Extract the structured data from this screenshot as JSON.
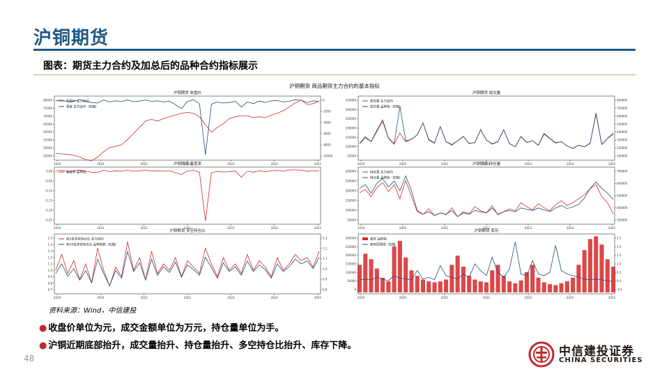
{
  "page": {
    "title": "沪铜期货",
    "subtitle": "图表：期货主力合约及加总后的品种合约指标展示",
    "source": "资料来源：Wind，中信建投",
    "bullets": [
      "收盘价单位为元，成交金额单位为万元，持仓量单位为手。",
      "沪铜近期底部抬升，成交量抬升、持仓量抬升、多空持仓比抬升、库存下降。"
    ],
    "page_number": "48",
    "logo": {
      "cn": "中信建投证券",
      "en": "CHINA SECURITIES",
      "icon": "china-securities-logo-icon"
    },
    "colors": {
      "accent": "#1f5a84",
      "red": "#d62728",
      "blue": "#1f4e79"
    }
  },
  "chart_data": {
    "suptitle": "沪铜期货 商品期货主力合约的基本指标",
    "x_ticks": [
      "2019",
      "2020",
      "2021",
      "2022",
      "2023",
      "2024",
      "2025"
    ],
    "charts": [
      {
        "type": "line",
        "title": "沪铜期货 收盘价",
        "y_ticks": [
          "80000",
          "75000",
          "70000",
          "65000",
          "60000",
          "55000",
          "50000",
          "45000"
        ],
        "y2_ticks": [
          "0",
          "-2000",
          "-4000",
          "-6000",
          "-8000",
          "-10000"
        ],
        "ylim": [
          45000,
          80000
        ],
        "y2lim": [
          -10500,
          500
        ],
        "series": [
          {
            "name": "收盘价 主力合约",
            "color": "red",
            "axis": "left",
            "values": [
              48000,
              47800,
              47500,
              47000,
              46000,
              44500,
              43800,
              46000,
              49000,
              51500,
              52000,
              53000,
              56000,
              59500,
              63000,
              66500,
              67500,
              66500,
              68000,
              69000,
              70000,
              71000,
              71500,
              71000,
              69000,
              64500,
              60000,
              63000,
              65000,
              68000,
              69000,
              69500,
              69500,
              68500,
              69000,
              68500,
              70000,
              71000,
              72500,
              74500,
              77000,
              78500,
              76000,
              76500,
              78000
            ]
          },
          {
            "name": "基差 主力合约（右轴）",
            "color": "blue",
            "axis": "right",
            "values": [
              -100,
              50,
              -300,
              -150,
              100,
              -200,
              -400,
              -500,
              50,
              -300,
              -100,
              -200,
              50,
              -250,
              -150,
              50,
              -200,
              -100,
              -300,
              -150,
              -800,
              -1500,
              -200,
              100,
              -600,
              -9800,
              -700,
              -300,
              -500,
              -400,
              -200,
              -1200,
              -300,
              -600,
              -150,
              -400,
              -100,
              -50,
              -300,
              -200,
              100,
              0,
              -400,
              -100,
              -200
            ]
          }
        ]
      },
      {
        "type": "line",
        "title": "沪铜期货 成交量",
        "y_ticks": [
          "350000",
          "300000",
          "250000",
          "200000",
          "150000",
          "100000",
          "50000"
        ],
        "y2_ticks": [
          "800000",
          "700000",
          "600000",
          "500000",
          "400000",
          "300000",
          "200000",
          "100000"
        ],
        "ylim": [
          0,
          360000
        ],
        "y2lim": [
          0,
          820000
        ],
        "series": [
          {
            "name": "成交量 主力合约",
            "color": "red",
            "axis": "left",
            "values": [
              90000,
              130000,
              100000,
              160000,
              220000,
              120000,
              85000,
              150000,
              100000,
              115000,
              140000,
              210000,
              110000,
              90000,
              190000,
              100000,
              80000,
              105000,
              130000,
              90000,
              95000,
              170000,
              110000,
              85000,
              100000,
              170000,
              90000,
              70000,
              130000,
              95000,
              105000,
              80000,
              150000,
              120000,
              95000,
              100000,
              75000,
              60000,
              80000,
              70000,
              90000,
              270000,
              85000,
              120000,
              150000
            ]
          },
          {
            "name": "成交量 品种指（右轴）",
            "color": "blue",
            "axis": "right",
            "values": [
              200000,
              280000,
              230000,
              380000,
              520000,
              280000,
              200000,
              700000,
              240000,
              260000,
              320000,
              480000,
              260000,
              210000,
              430000,
              230000,
              190000,
              240000,
              300000,
              200000,
              220000,
              390000,
              250000,
              200000,
              230000,
              390000,
              200000,
              160000,
              300000,
              220000,
              240000,
              180000,
              330000,
              270000,
              210000,
              230000,
              170000,
              140000,
              180000,
              160000,
              210000,
              600000,
              190000,
              270000,
              330000
            ]
          }
        ]
      },
      {
        "type": "line",
        "title": "沪铜期货 基差率",
        "y_ticks": [
          "0.00",
          "-0.05",
          "-0.10",
          "-0.15",
          "-0.20",
          "-0.25"
        ],
        "ylim": [
          -0.27,
          0.01
        ],
        "series": [
          {
            "name": "基差率 品种指",
            "color": "red",
            "axis": "left",
            "values": [
              -0.003,
              0.001,
              -0.006,
              -0.003,
              0.002,
              -0.004,
              -0.009,
              -0.011,
              0.001,
              -0.006,
              -0.002,
              -0.004,
              0.001,
              -0.004,
              -0.002,
              0.001,
              -0.003,
              -0.002,
              -0.004,
              -0.002,
              -0.012,
              -0.021,
              -0.003,
              0.001,
              -0.009,
              -0.26,
              -0.011,
              -0.005,
              -0.008,
              -0.006,
              -0.003,
              -0.035,
              -0.004,
              -0.009,
              -0.002,
              -0.006,
              -0.001,
              0.0,
              -0.004,
              0.002,
              0.003,
              0.001,
              -0.005,
              -0.001,
              -0.003
            ]
          }
        ]
      },
      {
        "type": "line",
        "title": "沪铜期货 持仓量",
        "y_ticks": [
          "300000",
          "250000",
          "200000",
          "150000",
          "100000",
          "50000"
        ],
        "y2_ticks": [
          "700000",
          "600000",
          "500000",
          "400000",
          "300000"
        ],
        "ylim": [
          40000,
          310000
        ],
        "y2lim": [
          280000,
          720000
        ],
        "series": [
          {
            "name": "持仓量 主力合约",
            "color": "red",
            "axis": "left",
            "values": [
              190000,
              205000,
              170000,
              215000,
              240000,
              195000,
              230000,
              160000,
              250000,
              170000,
              95000,
              82000,
              110000,
              75000,
              90000,
              80000,
              115000,
              70000,
              95000,
              85000,
              120000,
              100000,
              90000,
              125000,
              80000,
              95000,
              110000,
              100000,
              140000,
              120000,
              105000,
              135000,
              115000,
              100000,
              130000,
              150000,
              125000,
              140000,
              160000,
              180000,
              210000,
              230000,
              170000,
              140000,
              85000
            ]
          },
          {
            "name": "持仓量 品种指（右轴）",
            "color": "blue",
            "axis": "right",
            "values": [
              560000,
              590000,
              520000,
              600000,
              640000,
              570000,
              620000,
              540000,
              660000,
              540000,
              380000,
              350000,
              370000,
              340000,
              360000,
              350000,
              380000,
              330000,
              360000,
              350000,
              380000,
              370000,
              360000,
              400000,
              350000,
              370000,
              380000,
              370000,
              400000,
              390000,
              380000,
              400000,
              385000,
              370000,
              400000,
              420000,
              395000,
              410000,
              430000,
              480000,
              560000,
              610000,
              560000,
              520000,
              470000
            ]
          }
        ]
      },
      {
        "type": "line",
        "title": "沪铜期货 多空持仓比",
        "y_ticks": [
          "1.5",
          "1.4",
          "1.3",
          "1.2",
          "1.1",
          "1.0",
          "0.9",
          "0.8",
          "0.7"
        ],
        "y2_ticks": [
          "1.3",
          "1.2",
          "1.1",
          "1.0",
          "0.9",
          "0.8"
        ],
        "ylim": [
          0.65,
          1.55
        ],
        "y2lim": [
          0.75,
          1.35
        ],
        "series": [
          {
            "name": "前5名多空持仓比 主力合约",
            "color": "red",
            "axis": "left",
            "values": [
              1.0,
              1.25,
              0.95,
              1.15,
              0.85,
              1.1,
              0.8,
              1.35,
              1.0,
              0.75,
              1.05,
              0.9,
              1.45,
              1.0,
              1.2,
              0.85,
              1.3,
              0.95,
              1.1,
              1.0,
              1.2,
              0.9,
              1.15,
              1.05,
              0.95,
              1.35,
              1.1,
              0.9,
              1.2,
              1.0,
              1.1,
              0.95,
              1.25,
              1.0,
              1.15,
              1.05,
              0.9,
              1.2,
              1.0,
              1.1,
              1.25,
              1.15,
              1.2,
              1.05,
              1.3
            ]
          },
          {
            "name": "前20名多空持仓比 品种指数（右轴）",
            "color": "blue",
            "axis": "right",
            "values": [
              0.95,
              1.05,
              0.92,
              1.0,
              0.88,
              0.98,
              0.85,
              1.1,
              0.95,
              0.82,
              0.98,
              0.9,
              1.18,
              0.97,
              1.06,
              0.88,
              1.1,
              0.93,
              1.02,
              0.96,
              1.07,
              0.91,
              1.04,
              0.99,
              0.93,
              1.12,
              1.01,
              0.9,
              1.06,
              0.97,
              1.02,
              0.93,
              1.08,
              0.97,
              1.04,
              0.99,
              0.9,
              1.05,
              0.97,
              1.02,
              1.1,
              1.05,
              1.08,
              1.0,
              1.12
            ]
          }
        ]
      },
      {
        "type": "bar",
        "title": "沪铜期货 库存",
        "y_ticks": [
          "300000",
          "250000",
          "200000",
          "150000",
          "100000",
          "50000",
          "0"
        ],
        "y2_ticks": [
          "2.5",
          "2.0",
          "1.5",
          "1.0",
          "0.5",
          "0.0",
          "-0.5"
        ],
        "ylim": [
          0,
          310000
        ],
        "y2lim": [
          -0.7,
          2.7
        ],
        "series": [
          {
            "name": "库存 品种指",
            "color": "red",
            "axis": "left",
            "kind": "bar",
            "values": [
              150000,
              210000,
              180000,
              130000,
              80000,
              60000,
              250000,
              280000,
              190000,
              120000,
              90000,
              70000,
              60000,
              55000,
              60000,
              70000,
              150000,
              200000,
              140000,
              90000,
              70000,
              60000,
              55000,
              120000,
              150000,
              90000,
              60000,
              50000,
              65000,
              110000,
              150000,
              80000,
              55000,
              45000,
              40000,
              50000,
              60000,
              80000,
              150000,
              230000,
              290000,
              305000,
              260000,
              180000,
              140000
            ]
          },
          {
            "name": "库存回溯线（右轴）",
            "color": "blue",
            "axis": "right",
            "kind": "line",
            "values": [
              0.05,
              0.1,
              0.05,
              0.2,
              0.08,
              0.0,
              0.3,
              0.15,
              0.1,
              0.05,
              0.6,
              0.1,
              0.2,
              0.05,
              0.9,
              0.3,
              0.2,
              0.1,
              0.4,
              0.2,
              1.0,
              0.6,
              0.3,
              1.4,
              0.5,
              0.2,
              0.7,
              2.3,
              0.4,
              0.3,
              1.2,
              0.4,
              0.3,
              0.5,
              2.1,
              0.6,
              0.4,
              0.3,
              0.2,
              0.1,
              0.05,
              0.1,
              0.05,
              0.0,
              -0.05
            ]
          }
        ]
      }
    ]
  }
}
